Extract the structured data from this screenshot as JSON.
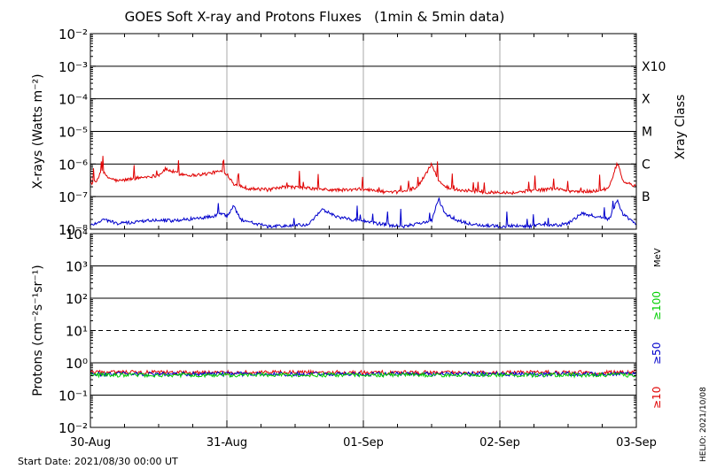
{
  "chart_data": {
    "type": "line",
    "title": "GOES Soft X-ray and Protons Fluxes   (1min & 5min data)",
    "x_tick_labels": [
      "30-Aug",
      "31-Aug",
      "01-Sep",
      "02-Sep",
      "03-Sep"
    ],
    "xlim_days": [
      0,
      4
    ],
    "start_date_label": "Start Date: 2021/08/30 00:00 UT",
    "credit": "HELIO: 2021/10/08",
    "panels": [
      {
        "name": "xray",
        "ylabel": "X-rays (Watts m⁻²)",
        "yscale": "log",
        "ylim": [
          1e-08,
          0.01
        ],
        "y_tick_labels": [
          {
            "exp": -2,
            "text": "10⁻²"
          },
          {
            "exp": -3,
            "text": "10⁻³"
          },
          {
            "exp": -4,
            "text": "10⁻⁴"
          },
          {
            "exp": -5,
            "text": "10⁻⁵"
          },
          {
            "exp": -6,
            "text": "10⁻⁶"
          },
          {
            "exp": -7,
            "text": "10⁻⁷"
          },
          {
            "exp": -8,
            "text": "10⁻⁸"
          }
        ],
        "right_axis_title": "Xray Class",
        "right_labels": [
          {
            "exp": -3,
            "text": "X10"
          },
          {
            "exp": -4,
            "text": "X"
          },
          {
            "exp": -5,
            "text": "M"
          },
          {
            "exp": -6,
            "text": "C"
          },
          {
            "exp": -7,
            "text": "B"
          }
        ],
        "series": [
          {
            "color": "#e00000",
            "x": [
              0,
              0.05,
              0.08,
              0.12,
              0.2,
              0.3,
              0.4,
              0.5,
              0.55,
              0.65,
              0.75,
              0.85,
              0.95,
              1.0,
              1.05,
              1.15,
              1.3,
              1.45,
              1.6,
              1.75,
              1.9,
              2.0,
              2.1,
              2.2,
              2.3,
              2.4,
              2.5,
              2.55,
              2.6,
              2.7,
              2.8,
              2.9,
              3.0,
              3.1,
              3.2,
              3.3,
              3.4,
              3.5,
              3.6,
              3.7,
              3.8,
              3.86,
              3.9,
              4.0
            ],
            "y": [
              2.5e-07,
              3e-07,
              7e-07,
              4e-07,
              3e-07,
              3.5e-07,
              4e-07,
              4.5e-07,
              7e-07,
              5e-07,
              4.5e-07,
              5e-07,
              6e-07,
              5e-07,
              2.5e-07,
              1.8e-07,
              1.6e-07,
              2e-07,
              1.8e-07,
              1.6e-07,
              1.6e-07,
              1.7e-07,
              1.5e-07,
              1.3e-07,
              1.5e-07,
              2e-07,
              1e-06,
              3e-07,
              2e-07,
              1.6e-07,
              1.5e-07,
              1.3e-07,
              1.4e-07,
              1.3e-07,
              1.5e-07,
              1.6e-07,
              1.8e-07,
              1.5e-07,
              1.4e-07,
              1.5e-07,
              1.8e-07,
              1.1e-06,
              3e-07,
              2e-07
            ]
          },
          {
            "color": "#0000cc",
            "x": [
              0,
              0.1,
              0.2,
              0.3,
              0.4,
              0.5,
              0.6,
              0.7,
              0.8,
              0.9,
              0.95,
              1.0,
              1.05,
              1.1,
              1.3,
              1.5,
              1.6,
              1.7,
              1.8,
              1.9,
              2.0,
              2.1,
              2.2,
              2.3,
              2.4,
              2.5,
              2.55,
              2.6,
              2.7,
              2.8,
              2.9,
              3.0,
              3.1,
              3.2,
              3.3,
              3.4,
              3.5,
              3.6,
              3.7,
              3.8,
              3.86,
              3.9,
              4.0
            ],
            "y": [
              1.3e-08,
              2e-08,
              1.5e-08,
              1.6e-08,
              1.8e-08,
              2e-08,
              1.8e-08,
              2e-08,
              2.2e-08,
              2.5e-08,
              3e-08,
              2.5e-08,
              5e-08,
              2e-08,
              1.2e-08,
              1.3e-08,
              1.4e-08,
              4e-08,
              2.5e-08,
              2e-08,
              1.8e-08,
              1.5e-08,
              1.3e-08,
              1.2e-08,
              1.5e-08,
              1.8e-08,
              8e-08,
              3e-08,
              1.8e-08,
              1.4e-08,
              1.3e-08,
              1.2e-08,
              1.3e-08,
              1.2e-08,
              1.4e-08,
              1.3e-08,
              1.5e-08,
              3e-08,
              2.5e-08,
              2e-08,
              8e-08,
              3e-08,
              1.4e-08
            ]
          }
        ]
      },
      {
        "name": "protons",
        "ylabel": "Protons (cm⁻²s⁻¹sr⁻¹)",
        "yscale": "log",
        "ylim": [
          0.01,
          10000
        ],
        "y_tick_labels": [
          {
            "exp": 4,
            "text": "10⁴"
          },
          {
            "exp": 3,
            "text": "10³"
          },
          {
            "exp": 2,
            "text": "10²"
          },
          {
            "exp": 1,
            "text": "10¹"
          },
          {
            "exp": 0,
            "text": "10⁰"
          },
          {
            "exp": -1,
            "text": "10⁻¹"
          },
          {
            "exp": -2,
            "text": "10⁻²"
          }
        ],
        "dashed_level": 10,
        "unit_label": "MeV",
        "legend": [
          {
            "text": "≥100",
            "color": "#00d000"
          },
          {
            "text": "≥50",
            "color": "#0000cc"
          },
          {
            "text": "≥10",
            "color": "#e00000"
          }
        ],
        "series": [
          {
            "name": "≥10",
            "color": "#e00000",
            "level": 0.5
          },
          {
            "name": "≥50",
            "color": "#0000cc",
            "level": 0.45
          },
          {
            "name": "≥100",
            "color": "#00d000",
            "level": 0.42
          }
        ]
      }
    ]
  }
}
